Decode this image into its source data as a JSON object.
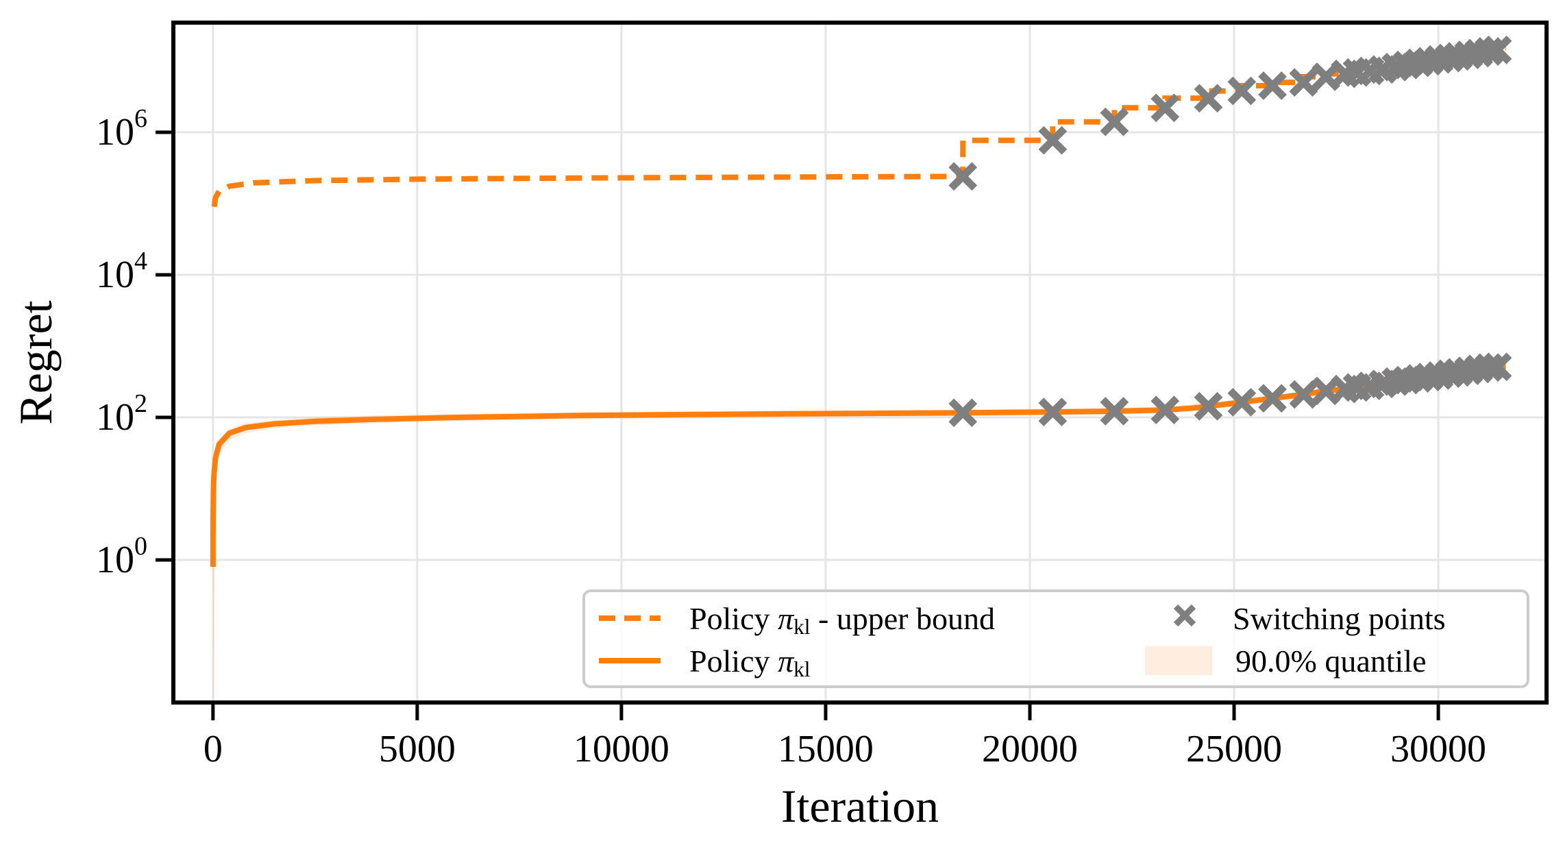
{
  "chart_data": {
    "type": "line",
    "title": "",
    "xlabel": "Iteration",
    "ylabel": "Regret",
    "grid": true,
    "log_y": true,
    "xlim": [
      -970,
      32650
    ],
    "ylim_log10": [
      -2,
      7.538
    ],
    "x_ticks": [
      {
        "value": 0,
        "label": "0"
      },
      {
        "value": 5000,
        "label": "5000"
      },
      {
        "value": 10000,
        "label": "10000"
      },
      {
        "value": 15000,
        "label": "15000"
      },
      {
        "value": 20000,
        "label": "20000"
      },
      {
        "value": 25000,
        "label": "25000"
      },
      {
        "value": 30000,
        "label": "30000"
      }
    ],
    "y_ticks": [
      {
        "base": "10",
        "exp": "6",
        "log10": 6
      },
      {
        "base": "10",
        "exp": "4",
        "log10": 4
      },
      {
        "base": "10",
        "exp": "2",
        "log10": 2
      },
      {
        "base": "10",
        "exp": "0",
        "log10": 0
      }
    ],
    "colors": {
      "line": "#ff7f0e",
      "marker": "#7f7f7f",
      "band": "rgba(255,127,14,0.13)",
      "grid": "#e5e5e5",
      "spine": "#000000"
    },
    "series": [
      {
        "name": "upper_bound",
        "style": "dashed",
        "points": [
          [
            30,
            90000
          ],
          [
            60,
            120000
          ],
          [
            150,
            150000
          ],
          [
            400,
            175000
          ],
          [
            1000,
            195000
          ],
          [
            2500,
            210000
          ],
          [
            5000,
            220000
          ],
          [
            9000,
            228000
          ],
          [
            13000,
            234000
          ],
          [
            18360,
            240000
          ],
          [
            18360,
            770000
          ],
          [
            20560,
            770000
          ],
          [
            20560,
            1400000
          ],
          [
            22070,
            1400000
          ],
          [
            22070,
            2200000
          ],
          [
            23310,
            2200000
          ],
          [
            23310,
            3000000
          ],
          [
            24370,
            3000000
          ],
          [
            24370,
            3800000
          ],
          [
            25190,
            3800000
          ],
          [
            25190,
            4500000
          ],
          [
            25940,
            4500000
          ],
          [
            25940,
            5000000
          ],
          [
            26700,
            5000000
          ],
          [
            26700,
            6000000
          ],
          [
            27250,
            6000000
          ],
          [
            27250,
            6600000
          ],
          [
            27720,
            6600000
          ],
          [
            27720,
            6900000
          ],
          [
            28010,
            6900000
          ],
          [
            28010,
            7250000
          ],
          [
            28330,
            7250000
          ],
          [
            28330,
            7600000
          ],
          [
            28640,
            7600000
          ],
          [
            28640,
            8200000
          ],
          [
            28960,
            8200000
          ],
          [
            28960,
            8800000
          ],
          [
            29230,
            8800000
          ],
          [
            29230,
            9400000
          ],
          [
            29520,
            9400000
          ],
          [
            29520,
            9900000
          ],
          [
            29770,
            9900000
          ],
          [
            29770,
            10500000
          ],
          [
            30020,
            10500000
          ],
          [
            30020,
            11000000
          ],
          [
            30270,
            11000000
          ],
          [
            30270,
            11600000
          ],
          [
            30490,
            11600000
          ],
          [
            30490,
            12200000
          ],
          [
            30740,
            12200000
          ],
          [
            30740,
            12900000
          ],
          [
            30990,
            12900000
          ],
          [
            30990,
            13600000
          ],
          [
            31240,
            13600000
          ],
          [
            31240,
            14300000
          ],
          [
            31450,
            14300000
          ],
          [
            31450,
            15000000
          ],
          [
            31650,
            15200000
          ]
        ]
      },
      {
        "name": "policy",
        "style": "solid",
        "points": [
          [
            1,
            0.8
          ],
          [
            2,
            2
          ],
          [
            5,
            5
          ],
          [
            12,
            10
          ],
          [
            25,
            16
          ],
          [
            60,
            27
          ],
          [
            150,
            42
          ],
          [
            400,
            60
          ],
          [
            800,
            72
          ],
          [
            1500,
            81
          ],
          [
            2500,
            88
          ],
          [
            4000,
            94
          ],
          [
            6000,
            100
          ],
          [
            9000,
            106
          ],
          [
            12000,
            110
          ],
          [
            15000,
            113
          ],
          [
            18360,
            116
          ],
          [
            20560,
            119
          ],
          [
            22070,
            122
          ],
          [
            23310,
            127
          ],
          [
            24000,
            135
          ],
          [
            24370,
            143
          ],
          [
            25190,
            163
          ],
          [
            25940,
            185
          ],
          [
            26700,
            210
          ],
          [
            27250,
            235
          ],
          [
            27720,
            250
          ],
          [
            28010,
            263
          ],
          [
            28330,
            277
          ],
          [
            28640,
            294
          ],
          [
            28960,
            318
          ],
          [
            29230,
            333
          ],
          [
            29520,
            352
          ],
          [
            29770,
            368
          ],
          [
            30020,
            386
          ],
          [
            30270,
            410
          ],
          [
            30490,
            428
          ],
          [
            30740,
            450
          ],
          [
            30990,
            478
          ],
          [
            31240,
            500
          ],
          [
            31450,
            512
          ],
          [
            31650,
            522
          ]
        ]
      }
    ],
    "band": {
      "name": "quantile_band",
      "points": [
        [
          1,
          0.011,
          1.0
        ],
        [
          2,
          0.011,
          2.5
        ],
        [
          5,
          0.011,
          6.5
        ],
        [
          12,
          0.011,
          13
        ],
        [
          25,
          0.011,
          20
        ],
        [
          60,
          14,
          33
        ],
        [
          150,
          30,
          50
        ],
        [
          400,
          48,
          70
        ],
        [
          800,
          60,
          83
        ],
        [
          1500,
          70,
          93
        ],
        [
          2500,
          77,
          100
        ],
        [
          4000,
          83,
          107
        ],
        [
          6000,
          89,
          113
        ],
        [
          9000,
          95,
          119
        ],
        [
          12000,
          99,
          123
        ],
        [
          15000,
          102,
          126
        ],
        [
          18360,
          104,
          129
        ],
        [
          20560,
          107,
          133
        ],
        [
          22070,
          110,
          137
        ],
        [
          23310,
          114,
          142
        ],
        [
          24370,
          128,
          160
        ],
        [
          25190,
          146,
          182
        ],
        [
          25940,
          166,
          207
        ],
        [
          26700,
          188,
          235
        ],
        [
          27250,
          211,
          263
        ],
        [
          27720,
          224,
          280
        ],
        [
          28010,
          236,
          294
        ],
        [
          28330,
          249,
          310
        ],
        [
          28640,
          264,
          329
        ],
        [
          28960,
          285,
          356
        ],
        [
          29230,
          299,
          373
        ],
        [
          29520,
          316,
          394
        ],
        [
          29770,
          330,
          412
        ],
        [
          30020,
          346,
          432
        ],
        [
          30270,
          368,
          459
        ],
        [
          30490,
          384,
          479
        ],
        [
          30740,
          404,
          504
        ],
        [
          30990,
          429,
          535
        ],
        [
          31240,
          449,
          560
        ],
        [
          31450,
          460,
          573
        ],
        [
          31650,
          468,
          584
        ]
      ]
    },
    "switching_points": [
      [
        18360,
        240000,
        116
      ],
      [
        20560,
        770000,
        119
      ],
      [
        22070,
        1400000,
        122
      ],
      [
        23310,
        2200000,
        127
      ],
      [
        24370,
        3000000,
        143
      ],
      [
        25190,
        3800000,
        163
      ],
      [
        25940,
        4500000,
        185
      ],
      [
        26700,
        5000000,
        210
      ],
      [
        27250,
        6000000,
        235
      ],
      [
        27720,
        6600000,
        250
      ],
      [
        28010,
        6900000,
        263
      ],
      [
        28330,
        7250000,
        277
      ],
      [
        28640,
        7600000,
        294
      ],
      [
        28960,
        8200000,
        318
      ],
      [
        29230,
        8800000,
        333
      ],
      [
        29520,
        9400000,
        352
      ],
      [
        29770,
        9900000,
        368
      ],
      [
        30020,
        10500000,
        386
      ],
      [
        30270,
        11000000,
        410
      ],
      [
        30490,
        11600000,
        428
      ],
      [
        30740,
        12200000,
        450
      ],
      [
        30990,
        12900000,
        478
      ],
      [
        31240,
        13600000,
        500
      ],
      [
        31450,
        14300000,
        512
      ]
    ],
    "legend": {
      "items": [
        {
          "sample": "dashed-line",
          "prefix": "Policy ",
          "pi": "π",
          "sub": "kl",
          "suffix": " - upper bound"
        },
        {
          "sample": "solid-line",
          "prefix": "Policy ",
          "pi": "π",
          "sub": "kl",
          "suffix": ""
        },
        {
          "sample": "x-marker",
          "label": "Switching points"
        },
        {
          "sample": "patch",
          "label": "90.0% quantile"
        }
      ]
    }
  }
}
